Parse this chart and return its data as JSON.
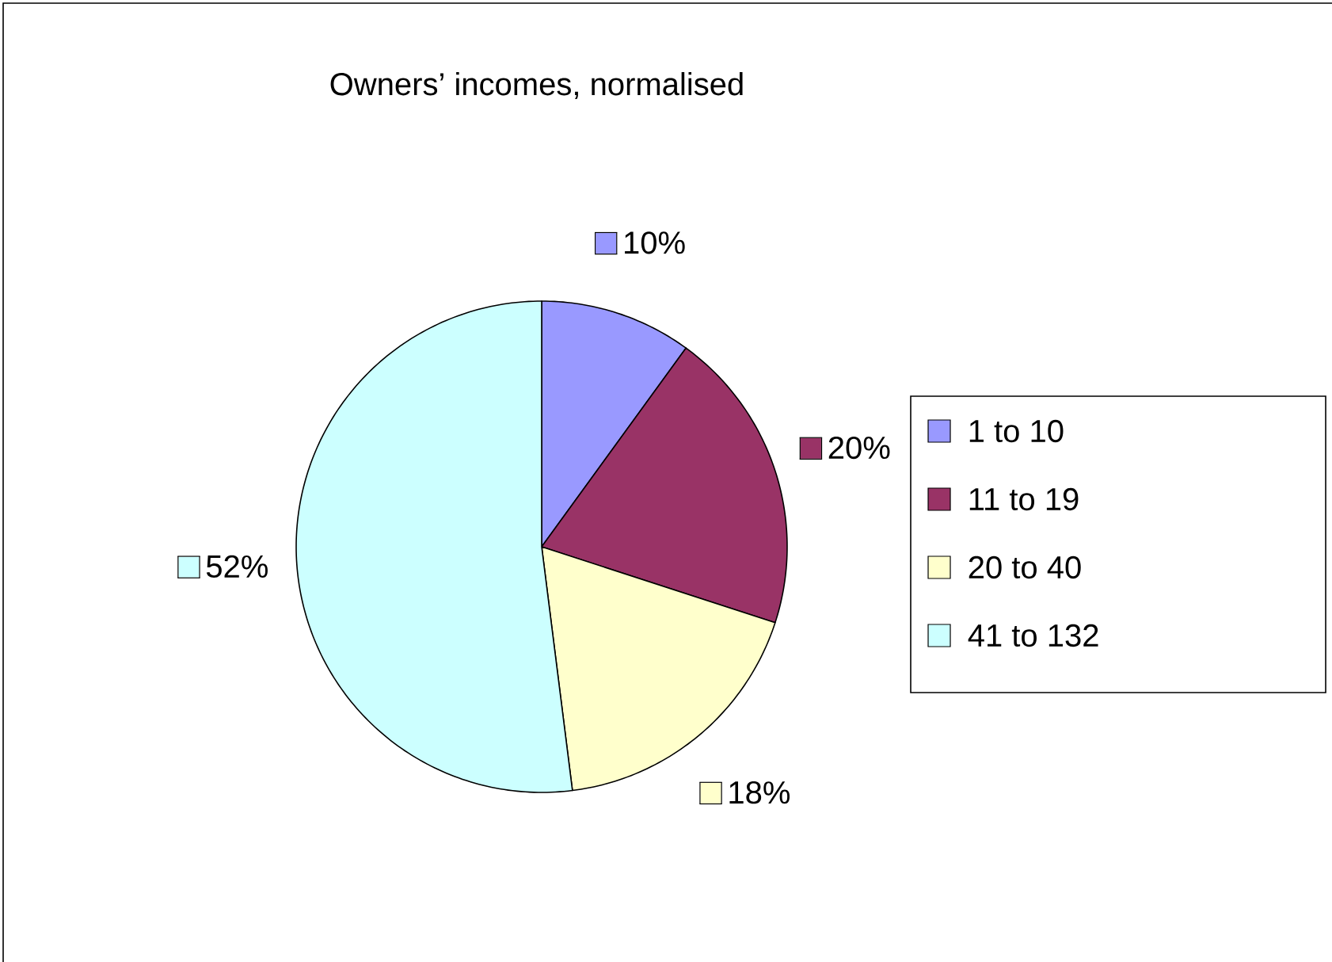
{
  "chart_data": {
    "type": "pie",
    "title": "Owners’ incomes, normalised",
    "categories": [
      "1 to 10",
      "11 to 19",
      "20 to 40",
      "41 to 132"
    ],
    "values": [
      10,
      20,
      18,
      52
    ],
    "value_labels": [
      "10%",
      "20%",
      "18%",
      "52%"
    ],
    "colors": [
      "#9999ff",
      "#993366",
      "#ffffcc",
      "#ccffff"
    ],
    "legend": "right"
  }
}
